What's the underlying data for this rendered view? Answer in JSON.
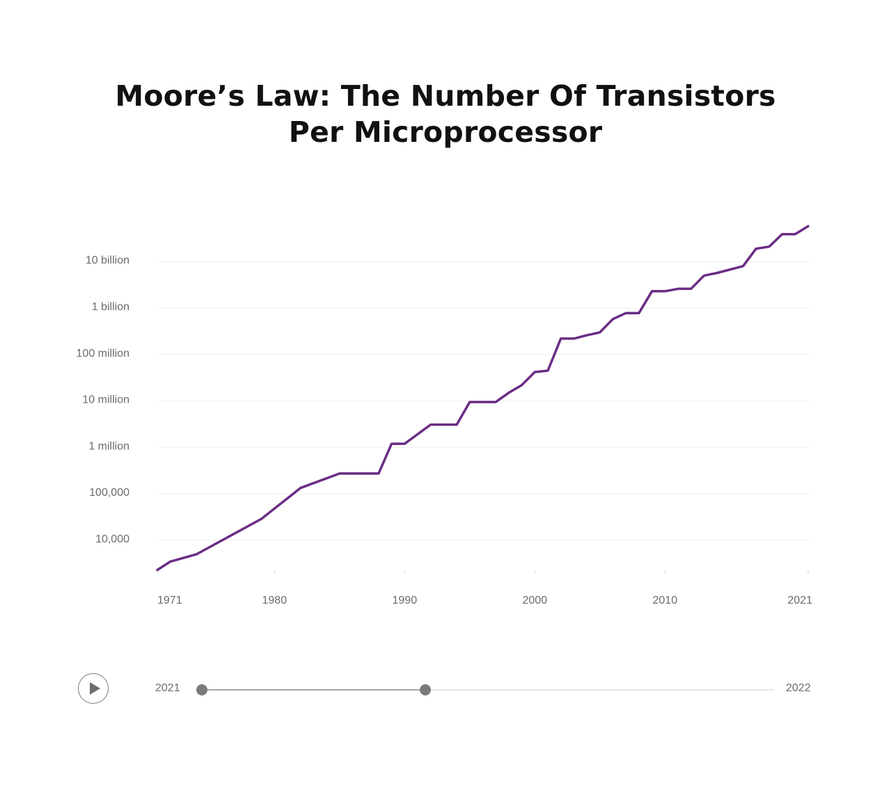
{
  "title_line1": "Moore’s Law: The Number Of Transistors",
  "title_line2": "Per Microprocessor",
  "chart_data": {
    "type": "line",
    "y_scale": "log",
    "xlim": [
      1971,
      2021
    ],
    "ylim": [
      2000,
      80000000000
    ],
    "grid": true,
    "legend": "none",
    "color": "#6a2c84",
    "x_ticks": [
      {
        "value": 1971,
        "label": "1971"
      },
      {
        "value": 1980,
        "label": "1980"
      },
      {
        "value": 1990,
        "label": "1990"
      },
      {
        "value": 2000,
        "label": "2000"
      },
      {
        "value": 2010,
        "label": "2010"
      },
      {
        "value": 2021,
        "label": "2021"
      }
    ],
    "y_ticks": [
      {
        "value": 10000,
        "label": "10,000"
      },
      {
        "value": 100000,
        "label": "100,000"
      },
      {
        "value": 1000000,
        "label": "1 million"
      },
      {
        "value": 10000000,
        "label": "10 million"
      },
      {
        "value": 100000000,
        "label": "100 million"
      },
      {
        "value": 1000000000,
        "label": "1 billion"
      },
      {
        "value": 10000000000,
        "label": "10 billion"
      }
    ],
    "series": [
      {
        "x": [
          1971,
          1972,
          1974,
          1979,
          1982,
          1985,
          1988,
          1989,
          1990,
          1992,
          1994,
          1995,
          1997,
          1998,
          1999,
          2000,
          2001,
          2002,
          2003,
          2004,
          2005,
          2006,
          2007,
          2008,
          2009,
          2010,
          2011,
          2012,
          2013,
          2014,
          2016,
          2017,
          2018,
          2019,
          2020,
          2021
        ],
        "y": [
          2300,
          3500,
          5000,
          29000,
          134000,
          275000,
          275000,
          1200000,
          1200000,
          3100000,
          3100000,
          9500000,
          9500000,
          15000000,
          22000000,
          42000000,
          45000000,
          220000000,
          220000000,
          260000000,
          300000000,
          580000000,
          780000000,
          780000000,
          2300000000,
          2300000000,
          2600000000,
          2600000000,
          5000000000,
          5700000000,
          8000000000,
          19000000000,
          21000000000,
          39000000000,
          39000000000,
          58000000000
        ]
      }
    ]
  },
  "player": {
    "play_icon": "play-icon",
    "range_start": "2021",
    "range_end": "2022",
    "slider_fill": 0.39
  }
}
